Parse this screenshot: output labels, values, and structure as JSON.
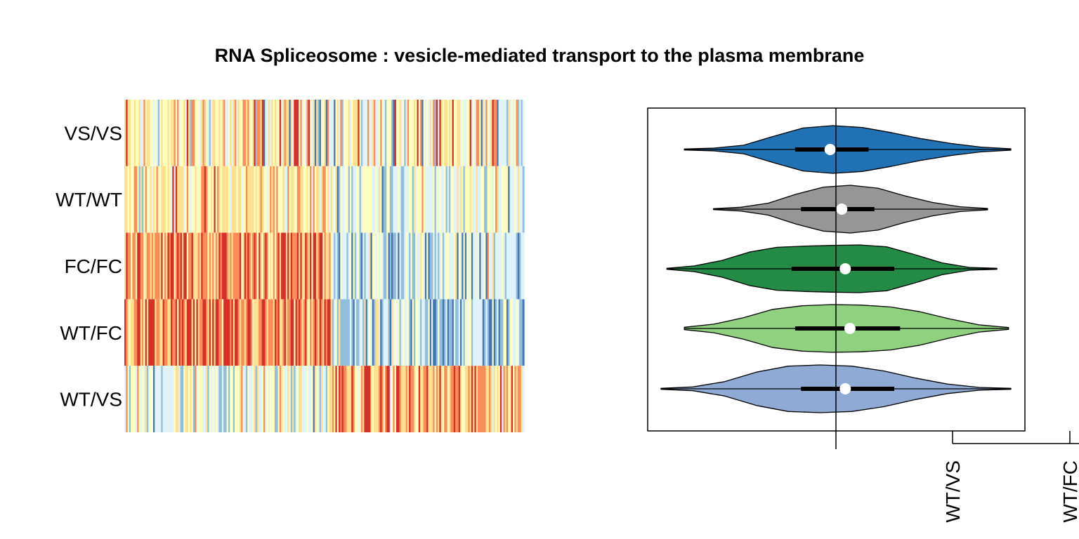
{
  "title": "RNA Spliceosome : vesicle-mediated transport to the plasma membrane",
  "chart_data": [
    {
      "type": "heatmap",
      "rows": [
        "VS/VS",
        "WT/WT",
        "FC/FC",
        "WT/FC",
        "WT/VS"
      ],
      "palette": [
        "#4575b4",
        "#91bfdb",
        "#e0f3f8",
        "#ffffbf",
        "#fee090",
        "#fc8d59",
        "#d73027"
      ],
      "columns_approx": 250,
      "row_value_profiles": [
        {
          "row": "VS/VS",
          "left_mean": 0.15,
          "right_mean": 0.0,
          "spread": 1.0
        },
        {
          "row": "WT/WT",
          "left_mean": 0.35,
          "right_mean": -0.3,
          "spread": 0.65
        },
        {
          "row": "FC/FC",
          "left_mean": 0.95,
          "right_mean": -0.6,
          "spread": 0.75
        },
        {
          "row": "WT/FC",
          "left_mean": 0.95,
          "right_mean": -0.75,
          "spread": 0.8
        },
        {
          "row": "WT/VS",
          "left_mean": -0.2,
          "right_mean": 0.7,
          "spread": 0.8
        }
      ],
      "split_fraction": 0.52
    },
    {
      "type": "violin",
      "orientation": "horizontal",
      "reference_line": 0,
      "x_tick_labels": [
        "WT/VS",
        "WT/FC"
      ],
      "series": [
        {
          "color": "#2171b5",
          "min": -1.3,
          "max": 1.5,
          "q1": -0.35,
          "median": -0.05,
          "q3": 0.28
        },
        {
          "color": "#969696",
          "min": -1.05,
          "max": 1.3,
          "q1": -0.3,
          "median": 0.05,
          "q3": 0.33
        },
        {
          "color": "#238b45",
          "min": -1.45,
          "max": 1.38,
          "q1": -0.38,
          "median": 0.08,
          "q3": 0.5
        },
        {
          "color": "#8fd17e",
          "min": -1.3,
          "max": 1.48,
          "q1": -0.35,
          "median": 0.12,
          "q3": 0.55
        },
        {
          "color": "#8faad5",
          "min": -1.5,
          "max": 1.5,
          "q1": -0.3,
          "median": 0.08,
          "q3": 0.5
        }
      ]
    }
  ]
}
